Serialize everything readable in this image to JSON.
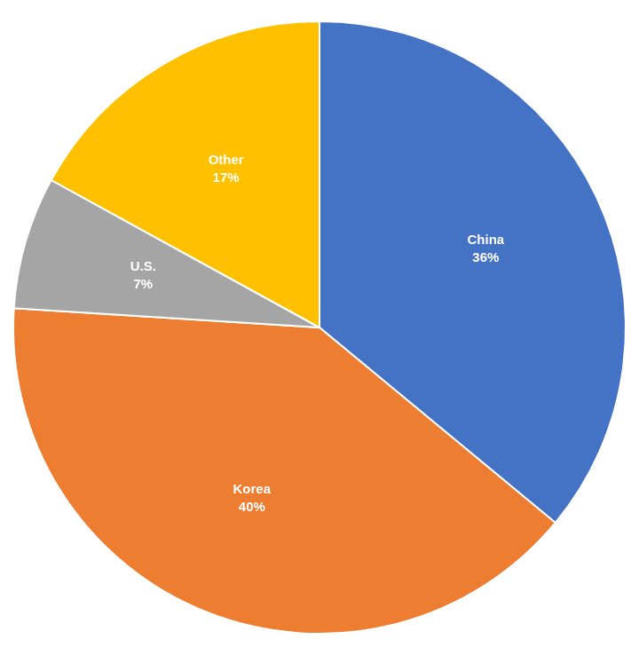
{
  "chart_data": {
    "type": "pie",
    "categories": [
      "China",
      "Korea",
      "U.S.",
      "Other"
    ],
    "values": [
      36,
      40,
      7,
      17
    ],
    "value_labels": [
      "36%",
      "40%",
      "7%",
      "17%"
    ],
    "colors": [
      "#4472c4",
      "#ed7d31",
      "#a5a5a5",
      "#ffc000"
    ],
    "data_labels": true
  }
}
